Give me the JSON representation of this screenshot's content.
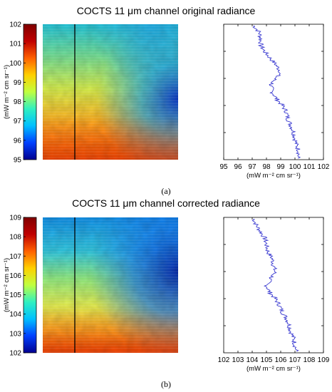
{
  "chart_data": [
    {
      "type": "heatmap",
      "title": "COCTS 11 μm channel original radiance",
      "colorbar_label": "(mW m⁻² cm sr⁻¹)",
      "colorbar_range": [
        95,
        102
      ],
      "colorbar_ticks": [
        "95",
        "96",
        "97",
        "98",
        "99",
        "100",
        "101",
        "102"
      ],
      "colormap": [
        "#000090",
        "#0040ff",
        "#00c0ff",
        "#30f0c0",
        "#c0ff40",
        "#ffd000",
        "#ff6000",
        "#c00000",
        "#800000"
      ],
      "grid": false
    },
    {
      "type": "line",
      "xlabel": "(mW m⁻² cm sr⁻¹)",
      "xlim": [
        95,
        102
      ],
      "xticks": [
        "95",
        "96",
        "97",
        "98",
        "99",
        "100",
        "101",
        "102"
      ],
      "line_color": "#3a3ad0",
      "grid": false,
      "profile_fraction": [
        0,
        0.05,
        0.1,
        0.15,
        0.2,
        0.25,
        0.3,
        0.35,
        0.4,
        0.45,
        0.5,
        0.55,
        0.6,
        0.65,
        0.7,
        0.75,
        0.8,
        0.85,
        0.9,
        0.95,
        1.0
      ],
      "values": [
        97.1,
        97.5,
        97.6,
        97.6,
        97.9,
        98.3,
        98.7,
        99.0,
        98.6,
        98.3,
        98.4,
        98.7,
        99.1,
        99.4,
        99.5,
        99.7,
        99.9,
        100.0,
        100.1,
        100.3,
        100.2
      ]
    },
    {
      "type": "heatmap",
      "title": "COCTS 11 μm channel corrected radiance",
      "colorbar_label": "(mW m⁻² cm sr⁻¹)",
      "colorbar_range": [
        102,
        109
      ],
      "colorbar_ticks": [
        "102",
        "103",
        "104",
        "105",
        "106",
        "107",
        "108",
        "109"
      ],
      "colormap": [
        "#000090",
        "#0040ff",
        "#00c0ff",
        "#30f0c0",
        "#c0ff40",
        "#ffd000",
        "#ff6000",
        "#c00000",
        "#800000"
      ],
      "grid": false
    },
    {
      "type": "line",
      "xlabel": "(mW m⁻² cm sr⁻¹)",
      "xlim": [
        102,
        109
      ],
      "xticks": [
        "102",
        "103",
        "104",
        "105",
        "106",
        "107",
        "108",
        "109"
      ],
      "line_color": "#3a3ad0",
      "grid": false,
      "profile_fraction": [
        0,
        0.05,
        0.1,
        0.15,
        0.2,
        0.25,
        0.3,
        0.35,
        0.4,
        0.45,
        0.5,
        0.55,
        0.6,
        0.65,
        0.7,
        0.75,
        0.8,
        0.85,
        0.9,
        0.95,
        1.0
      ],
      "values": [
        104.1,
        104.3,
        104.6,
        104.9,
        105.0,
        105.1,
        105.4,
        105.5,
        105.6,
        105.3,
        105.0,
        105.2,
        105.6,
        105.9,
        106.1,
        106.4,
        106.6,
        106.7,
        106.9,
        107.0,
        107.1
      ]
    }
  ],
  "figure": {
    "label_a": "(a)",
    "label_b": "(b)"
  }
}
